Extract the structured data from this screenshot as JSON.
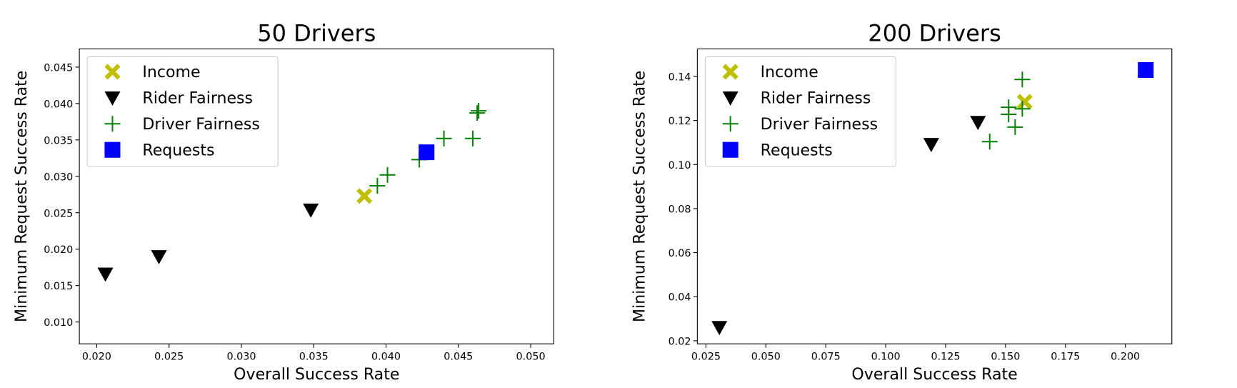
{
  "chart_data": [
    {
      "type": "scatter",
      "title": "50 Drivers",
      "x_label": "Overall Success Rate",
      "y_label": "Minimum Request Success Rate",
      "xlim": [
        0.0188,
        0.0516
      ],
      "ylim": [
        0.007,
        0.0475
      ],
      "xticks": [
        {
          "value": 0.02,
          "label": "0.020"
        },
        0.025,
        {
          "value": 0.03,
          "label": "0.030"
        },
        0.035,
        {
          "value": 0.04,
          "label": "0.040"
        },
        0.045,
        {
          "value": 0.05,
          "label": "0.050"
        }
      ],
      "yticks": [
        {
          "value": 0.01,
          "label": "0.010"
        },
        0.015,
        {
          "value": 0.02,
          "label": "0.020"
        },
        0.025,
        {
          "value": 0.03,
          "label": "0.030"
        },
        0.035,
        {
          "value": 0.04,
          "label": "0.040"
        },
        0.045
      ],
      "legend": "upper left",
      "series": [
        {
          "name": "Income",
          "color": "#bfbf00",
          "marker": "X",
          "x": [
            0.0385
          ],
          "y": [
            0.0273
          ]
        },
        {
          "name": "Rider Fairness",
          "color": "#000000",
          "marker": "v",
          "x": [
            0.0206,
            0.0243,
            0.0348
          ],
          "y": [
            0.0166,
            0.019,
            0.0254
          ]
        },
        {
          "name": "Driver Fairness",
          "color": "#008000",
          "marker": "+",
          "x": [
            0.0394,
            0.0401,
            0.0423,
            0.044,
            0.046,
            0.0463,
            0.0464
          ],
          "y": [
            0.0287,
            0.0302,
            0.0323,
            0.0352,
            0.0352,
            0.0387,
            0.039
          ]
        },
        {
          "name": "Requests",
          "color": "#0000ff",
          "marker": "s",
          "x": [
            0.0428
          ],
          "y": [
            0.0333
          ]
        }
      ]
    },
    {
      "type": "scatter",
      "title": "200 Drivers",
      "x_label": "Overall Success Rate",
      "y_label": "Minimum Request Success Rate",
      "xlim": [
        0.0214,
        0.2194
      ],
      "ylim": [
        0.0186,
        0.1525
      ],
      "xticks": [
        0.025,
        {
          "value": 0.05,
          "label": "0.050"
        },
        0.075,
        {
          "value": 0.1,
          "label": "0.100"
        },
        0.125,
        {
          "value": 0.15,
          "label": "0.150"
        },
        0.175,
        {
          "value": 0.2,
          "label": "0.200"
        }
      ],
      "yticks": [
        0.02,
        0.04,
        0.06,
        0.08,
        {
          "value": 0.1,
          "label": "0.10"
        },
        0.12,
        0.14
      ],
      "legend": "upper left",
      "series": [
        {
          "name": "Income",
          "color": "#bfbf00",
          "marker": "X",
          "x": [
            0.158
          ],
          "y": [
            0.1285
          ]
        },
        {
          "name": "Rider Fairness",
          "color": "#000000",
          "marker": "v",
          "x": [
            0.0306,
            0.119,
            0.1385
          ],
          "y": [
            0.0261,
            0.1092,
            0.1192
          ]
        },
        {
          "name": "Driver Fairness",
          "color": "#008000",
          "marker": "+",
          "x": [
            0.1434,
            0.1513,
            0.1513,
            0.154,
            0.157,
            0.157
          ],
          "y": [
            0.1104,
            0.126,
            0.1228,
            0.117,
            0.1386,
            0.1253
          ]
        },
        {
          "name": "Requests",
          "color": "#0000ff",
          "marker": "s",
          "x": [
            0.2085
          ],
          "y": [
            0.1429
          ]
        }
      ]
    }
  ]
}
